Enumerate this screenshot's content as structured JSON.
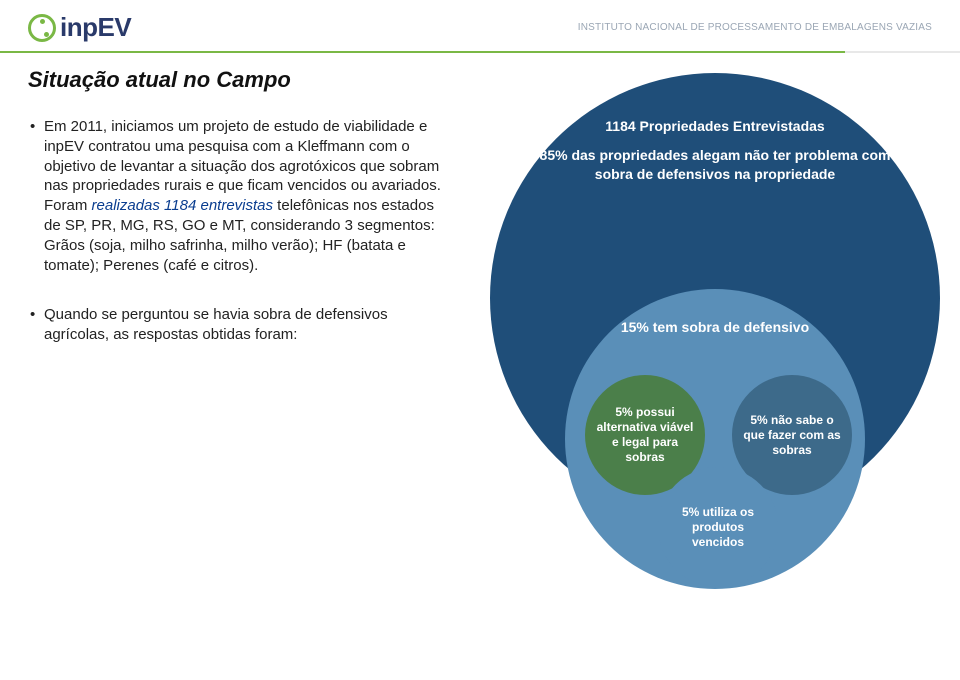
{
  "header": {
    "logo_text": "inpEV",
    "org_name": "INSTITUTO NACIONAL DE PROCESSAMENTO DE EMBALAGENS VAZIAS"
  },
  "title": "Situação atual no Campo",
  "bullets": {
    "b1_pre": "Em 2011, iniciamos um projeto de estudo de viabilidade e inpEV contratou uma pesquisa com a Kleffmann com o objetivo de levantar a situação dos agrotóxicos que sobram nas propriedades rurais e que ficam vencidos ou avariados. Foram ",
    "b1_em": "realizadas 1184 entrevistas",
    "b1_post": " telefônicas nos estados de SP, PR, MG, RS, GO e MT, considerando 3 segmentos: Grãos (soja, milho safrinha, milho verão); HF (batata e tomate); Perenes (café e citros).",
    "b2": "Quando se perguntou se havia sobra de defensivos agrícolas, as respostas obtidas foram:"
  },
  "venn": {
    "big": {
      "color": "#1f4e79",
      "head": "1184 Propriedades Entrevistadas",
      "body": "85% das propriedades alegam não ter problema com sobra de defensivos na propriedade"
    },
    "mid": {
      "color": "#5a8fb8",
      "label": "15% tem sobra de defensivo"
    },
    "s1": {
      "color": "#4b7f4a",
      "label": "5% possui alternativa viável e legal para sobras"
    },
    "s2": {
      "color": "#3d6a8a",
      "label": "5% não sabe o que fazer com as sobras"
    },
    "s3": {
      "color": "#5a8fb8",
      "label": "5% utiliza os produtos vencidos"
    }
  },
  "style": {
    "fontsize_title": 22,
    "fontsize_body": 15,
    "fontsize_venn_big": 14,
    "fontsize_venn_small": 12,
    "background": "#ffffff"
  }
}
